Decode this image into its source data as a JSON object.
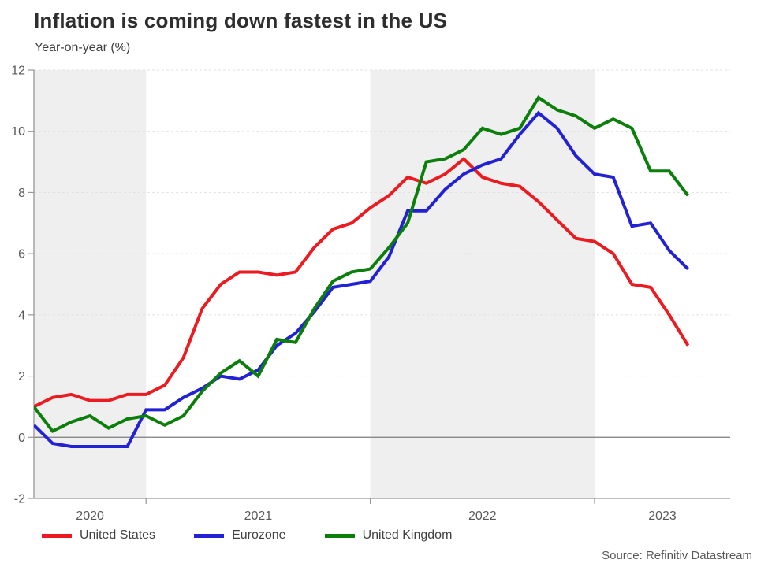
{
  "header": {
    "title": "Inflation is coming down fastest in the US",
    "subtitle": "Year-on-year (%)"
  },
  "source": "Source: Refinitiv Datastream",
  "colors": {
    "band": "#efefef",
    "grid": "#e1e1e1",
    "axis": "#969696",
    "zero_line": "#7b7b7b",
    "tick_text": "#595959",
    "title_text": "#2e2e2e",
    "legend_text": "#404040",
    "source_text": "#595959"
  },
  "chart_data": {
    "type": "line",
    "title": "Inflation is coming down fastest in the US",
    "ylabel": "Year-on-year (%)",
    "ylim": [
      -2,
      12
    ],
    "yticks": [
      -2,
      0,
      2,
      4,
      6,
      8,
      10,
      12
    ],
    "grid": "horizontal-dashed",
    "zero_line": true,
    "legend_position": "bottom",
    "shaded_year_bands": [
      "2020",
      "2022"
    ],
    "x_tick_labels": [
      "2020",
      "2021",
      "2022",
      "2023"
    ],
    "x": [
      "2020-07",
      "2020-08",
      "2020-09",
      "2020-10",
      "2020-11",
      "2020-12",
      "2021-01",
      "2021-02",
      "2021-03",
      "2021-04",
      "2021-05",
      "2021-06",
      "2021-07",
      "2021-08",
      "2021-09",
      "2021-10",
      "2021-11",
      "2021-12",
      "2022-01",
      "2022-02",
      "2022-03",
      "2022-04",
      "2022-05",
      "2022-06",
      "2022-07",
      "2022-08",
      "2022-09",
      "2022-10",
      "2022-11",
      "2022-12",
      "2023-01",
      "2023-02",
      "2023-03",
      "2023-04",
      "2023-05",
      "2023-06"
    ],
    "series": [
      {
        "name": "United States",
        "color": "#ea1c21",
        "values": [
          1.0,
          1.3,
          1.4,
          1.2,
          1.2,
          1.4,
          1.4,
          1.7,
          2.6,
          4.2,
          5.0,
          5.4,
          5.4,
          5.3,
          5.4,
          6.2,
          6.8,
          7.0,
          7.5,
          7.9,
          8.5,
          8.3,
          8.6,
          9.1,
          8.5,
          8.3,
          8.2,
          7.7,
          7.1,
          6.5,
          6.4,
          6.0,
          5.0,
          4.9,
          4.0,
          3.0
        ]
      },
      {
        "name": "Eurozone",
        "color": "#2222d4",
        "values": [
          0.4,
          -0.2,
          -0.3,
          -0.3,
          -0.3,
          -0.3,
          0.9,
          0.9,
          1.3,
          1.6,
          2.0,
          1.9,
          2.2,
          3.0,
          3.4,
          4.1,
          4.9,
          5.0,
          5.1,
          5.9,
          7.4,
          7.4,
          8.1,
          8.6,
          8.9,
          9.1,
          9.9,
          10.6,
          10.1,
          9.2,
          8.6,
          8.5,
          6.9,
          7.0,
          6.1,
          5.5
        ]
      },
      {
        "name": "United Kingdom",
        "color": "#0b7e0b",
        "values": [
          1.0,
          0.2,
          0.5,
          0.7,
          0.3,
          0.6,
          0.7,
          0.4,
          0.7,
          1.5,
          2.1,
          2.5,
          2.0,
          3.2,
          3.1,
          4.2,
          5.1,
          5.4,
          5.5,
          6.2,
          7.0,
          9.0,
          9.1,
          9.4,
          10.1,
          9.9,
          10.1,
          11.1,
          10.7,
          10.5,
          10.1,
          10.4,
          10.1,
          8.7,
          8.7,
          7.9
        ]
      }
    ]
  }
}
